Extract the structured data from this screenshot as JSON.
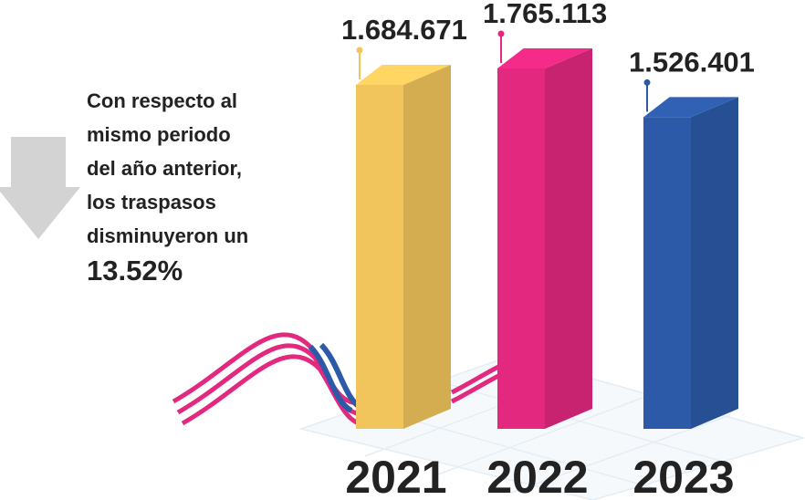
{
  "chart_data": {
    "type": "bar3d",
    "categories": [
      "2021",
      "2022",
      "2023"
    ],
    "values": [
      1684671,
      1765113,
      1526401
    ],
    "value_labels": [
      "1.684.671",
      "1.765.113",
      "1.526.401"
    ],
    "colors": [
      "#f2c55c",
      "#e3287f",
      "#2c5aa8"
    ],
    "annotations": [
      "Con respecto al",
      "mismo periodo",
      "del año anterior,",
      "los traspasos",
      "disminuyeron un",
      "13.52%"
    ]
  }
}
